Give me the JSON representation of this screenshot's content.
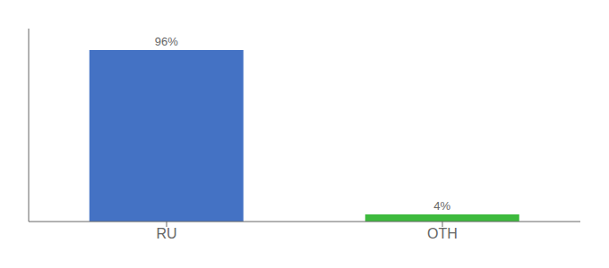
{
  "chart_data": {
    "type": "bar",
    "categories": [
      "RU",
      "OTH"
    ],
    "values": [
      96,
      4
    ],
    "colors": [
      "#4472c4",
      "#3dba3d"
    ],
    "data_labels": true,
    "value_labels": [
      "96%",
      "4%"
    ],
    "ylim": [
      0,
      108
    ],
    "tick_labels": "x",
    "grid": false
  }
}
